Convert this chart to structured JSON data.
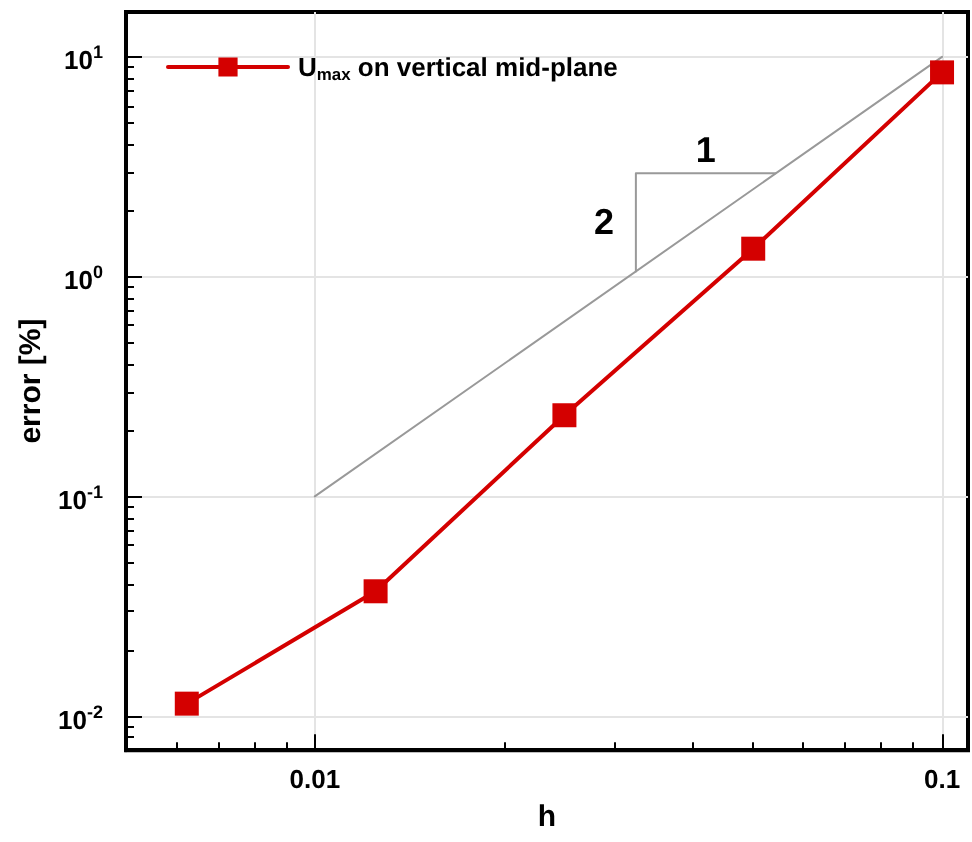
{
  "chart_data": {
    "type": "line",
    "xlabel": "h",
    "ylabel": "error [%]",
    "log": "xy",
    "grid": true,
    "legend": "top left",
    "marker": "square",
    "line_style": "solid",
    "xlim": [
      0.005,
      0.11
    ],
    "xticks": [
      0.01,
      0.1
    ],
    "ylim": [
      0.007,
      16
    ],
    "yticks": [
      {
        "value": 0.01,
        "label": "10$^{-2}$"
      },
      {
        "value": 0.1,
        "label": "10$^{-1}$"
      },
      {
        "value": 1,
        "label": "10$^{0}$"
      },
      {
        "value": 10,
        "label": "10$^{1}$"
      }
    ],
    "series": [
      {
        "name": "U$_{max}$ on vertical mid-plane",
        "color": "#d40000",
        "x": [
          0.00625,
          0.0125,
          0.025,
          0.05,
          0.1
        ],
        "values": [
          0.0114,
          0.037,
          0.234,
          1.34,
          8.5
        ]
      },
      {
        "color": "#999999",
        "marker": "none",
        "x": [
          0.01,
          0.1
        ],
        "values": [
          0.1,
          10
        ]
      },
      {
        "color": "#999999",
        "marker": "none",
        "x": [
          0.0325,
          0.0325,
          0.0543
        ],
        "values": [
          1.056,
          2.95,
          2.95
        ]
      }
    ],
    "annotations": [
      "1",
      "2"
    ]
  }
}
